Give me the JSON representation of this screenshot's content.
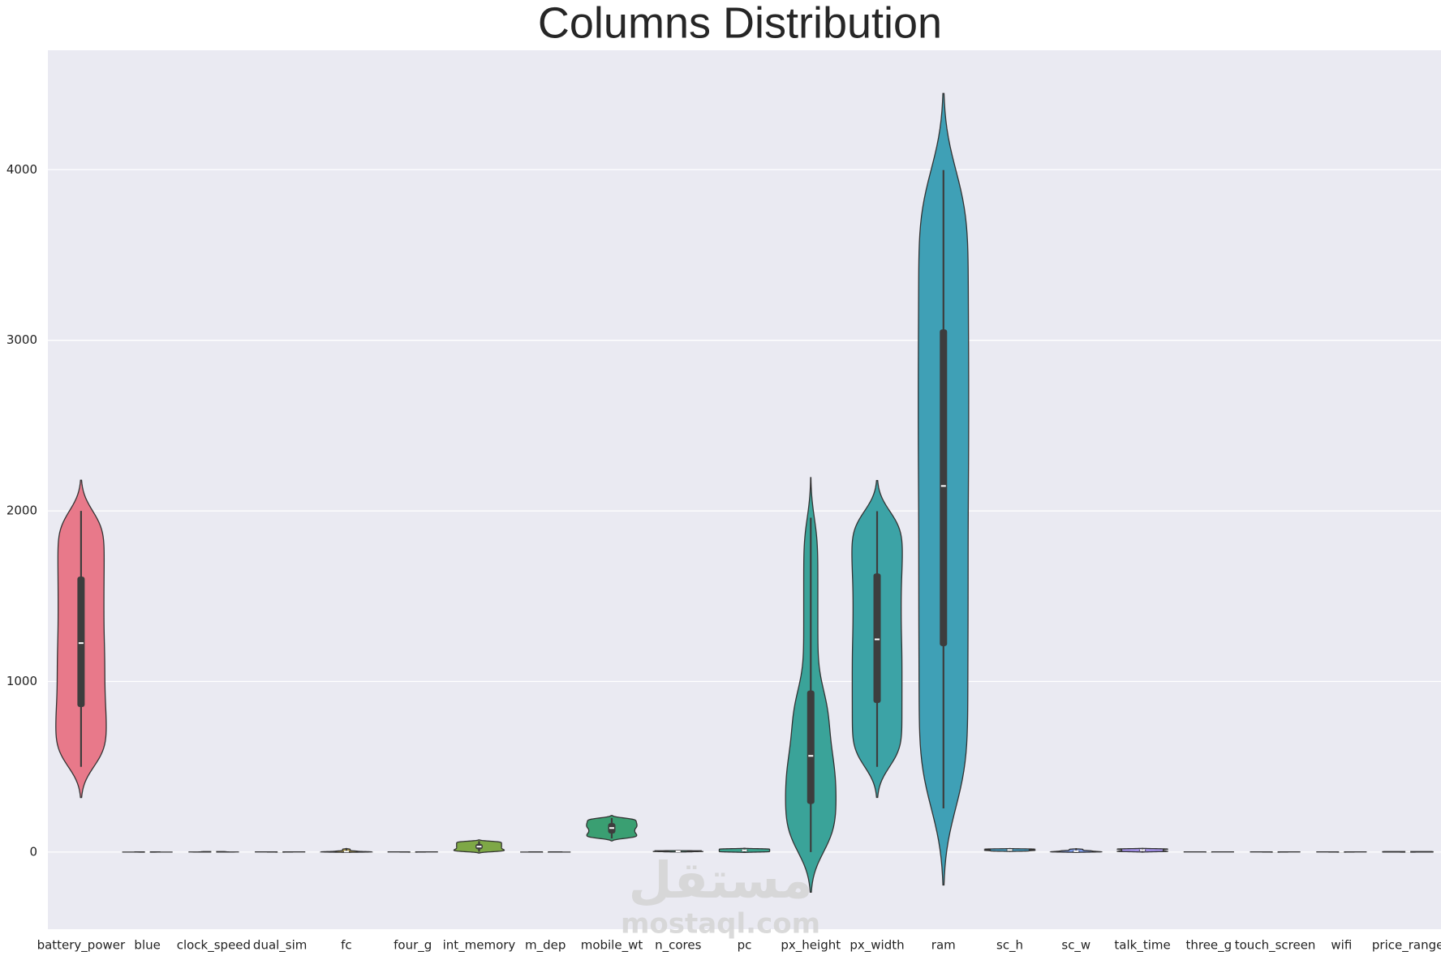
{
  "chart_data": {
    "type": "violin",
    "title": "Columns Distribution",
    "categories": [
      "battery_power",
      "blue",
      "clock_speed",
      "dual_sim",
      "fc",
      "four_g",
      "int_memory",
      "m_dep",
      "mobile_wt",
      "n_cores",
      "pc",
      "px_height",
      "px_width",
      "ram",
      "sc_h",
      "sc_w",
      "talk_time",
      "three_g",
      "touch_screen",
      "wifi",
      "price_range"
    ],
    "min": [
      500,
      0,
      0.5,
      0,
      0,
      0,
      2,
      0.1,
      80,
      1,
      0,
      0,
      500,
      256,
      5,
      0,
      2,
      0,
      0,
      0,
      0
    ],
    "q1": [
      850,
      0,
      0.7,
      0,
      1,
      0,
      16,
      0.2,
      109,
      3,
      5,
      282,
      874,
      1207,
      9,
      2,
      6,
      1,
      0,
      0,
      0.75
    ],
    "median": [
      1225,
      0,
      1.5,
      1,
      3,
      1,
      32,
      0.5,
      141,
      4,
      10,
      564,
      1247,
      2146,
      12,
      5,
      11,
      1,
      1,
      1,
      1.5
    ],
    "q3": [
      1615,
      1,
      2.2,
      1,
      7,
      1,
      48,
      0.8,
      170,
      7,
      15,
      947,
      1633,
      3064,
      16,
      9,
      16,
      1,
      1,
      1,
      2.25
    ],
    "max": [
      2000,
      1,
      3,
      1,
      19,
      1,
      64,
      1,
      200,
      8,
      20,
      1960,
      1998,
      3998,
      19,
      18,
      20,
      1,
      1,
      1,
      3
    ],
    "colors": [
      "#e8798a",
      "#e5806a",
      "#d6894e",
      "#c4934a",
      "#b09b48",
      "#9aa247",
      "#7ea846",
      "#52ae5f",
      "#3a9f72",
      "#38a282",
      "#39a38d",
      "#3aa399",
      "#3ca3a6",
      "#3fa0b6",
      "#46a0c6",
      "#7d9be8",
      "#a18fe6",
      "#c082e6",
      "#dd78d3",
      "#e273b6",
      "#e777a0"
    ],
    "ylim": [
      -452,
      4700
    ],
    "yticks": [
      0,
      1000,
      2000,
      3000,
      4000
    ],
    "grid": true
  },
  "watermark": {
    "arabic": "مستقل",
    "latin": "mostaql.com"
  }
}
